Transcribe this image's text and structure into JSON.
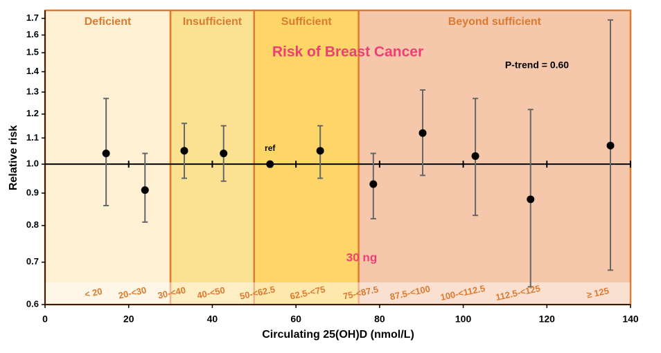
{
  "chart_data": {
    "type": "scatter",
    "annotation_title": "Risk of Breast Cancer",
    "p_trend": "P-trend = 0.60",
    "ref_label": "ref",
    "threshold_label": "30 ng",
    "x_label": "Circulating 25(OH)D (nmol/L)",
    "y_label": "Relative risk",
    "log_y": true,
    "xlim": [
      0,
      140
    ],
    "ylim": [
      0.6,
      1.75
    ],
    "xticks": [
      0,
      20,
      40,
      60,
      80,
      100,
      120,
      140
    ],
    "yticks": [
      0.6,
      0.7,
      0.8,
      0.9,
      {
        "value": 1,
        "label": "1.0"
      },
      1.1,
      1.2,
      1.3,
      1.4,
      1.5,
      1.6,
      1.7
    ],
    "regions": [
      {
        "name": "Deficient",
        "start": 0,
        "end": 30,
        "color": "#fdf0d3"
      },
      {
        "name": "Insufficient",
        "start": 30,
        "end": 50,
        "color": "#fbe192"
      },
      {
        "name": "Sufficient",
        "start": 50,
        "end": 75,
        "color": "#fdd667"
      },
      {
        "name": "Beyond sufficient",
        "start": 75,
        "end": 140,
        "color": "#f5c7ab"
      }
    ],
    "categories": [
      "< 20",
      "20-<30",
      "30-<40",
      "40-<50",
      "50-<62.5",
      "62.5-<75",
      "75-<87.5",
      "87.5-<100",
      "100-<112.5",
      "112.5-<125",
      "≥ 125"
    ],
    "x": [
      14.6,
      23.9,
      33.3,
      42.7,
      53.8,
      65.8,
      78.5,
      90.3,
      102.9,
      116.1,
      135.2
    ],
    "values": [
      1.04,
      0.91,
      1.05,
      1.04,
      1.0,
      1.05,
      0.93,
      1.12,
      1.03,
      0.88,
      1.07
    ],
    "lower": [
      0.86,
      0.81,
      0.95,
      0.94,
      null,
      0.95,
      0.82,
      0.96,
      0.83,
      0.64,
      0.68
    ],
    "upper": [
      1.27,
      1.04,
      1.16,
      1.15,
      null,
      1.15,
      1.04,
      1.31,
      1.27,
      1.22,
      1.69
    ],
    "color": "#000000",
    "error_color": "#666666"
  }
}
